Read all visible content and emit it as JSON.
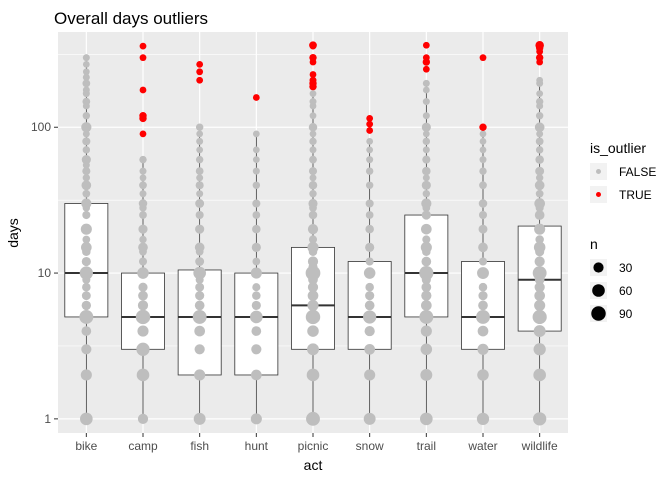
{
  "chart_data": {
    "type": "boxplot",
    "title": "Overall days outliers",
    "xlabel": "act",
    "ylabel": "days",
    "y_scale": "log10",
    "ylim": [
      0.8,
      450
    ],
    "y_ticks": [
      1,
      10,
      100
    ],
    "y_tick_labels": [
      "1",
      "10",
      "100"
    ],
    "grid": true,
    "categories": [
      "bike",
      "camp",
      "fish",
      "hunt",
      "picnic",
      "snow",
      "trail",
      "water",
      "wildlife"
    ],
    "boxes": [
      {
        "q1": 5,
        "median": 10,
        "q3": 30,
        "whisker_low": 1,
        "whisker_high": 300
      },
      {
        "q1": 3,
        "median": 5,
        "q3": 10,
        "whisker_low": 1,
        "whisker_high": 60
      },
      {
        "q1": 2,
        "median": 5,
        "q3": 10.5,
        "whisker_low": 1,
        "whisker_high": 100
      },
      {
        "q1": 2,
        "median": 5,
        "q3": 10,
        "whisker_low": 1,
        "whisker_high": 90
      },
      {
        "q1": 3,
        "median": 6,
        "q3": 15,
        "whisker_low": 1,
        "whisker_high": 170
      },
      {
        "q1": 3,
        "median": 5,
        "q3": 12,
        "whisker_low": 1,
        "whisker_high": 80
      },
      {
        "q1": 5,
        "median": 10,
        "q3": 25,
        "whisker_low": 1,
        "whisker_high": 200
      },
      {
        "q1": 3,
        "median": 5,
        "q3": 12,
        "whisker_low": 1,
        "whisker_high": 90
      },
      {
        "q1": 4,
        "median": 9,
        "q3": 21,
        "whisker_low": 1,
        "whisker_high": 210
      }
    ],
    "points": [
      {
        "category": "bike",
        "values": [
          1,
          2,
          3,
          4,
          5,
          6,
          7,
          8,
          9,
          10,
          12,
          14,
          15,
          17,
          20,
          25,
          28,
          30,
          35,
          40,
          45,
          50,
          55,
          60,
          70,
          80,
          90,
          100,
          120,
          140,
          150,
          170,
          180,
          200,
          220,
          240,
          270,
          300
        ],
        "n": [
          60,
          40,
          30,
          25,
          80,
          22,
          18,
          15,
          12,
          70,
          20,
          15,
          35,
          10,
          40,
          12,
          8,
          30,
          10,
          25,
          8,
          12,
          6,
          20,
          8,
          12,
          6,
          30,
          8,
          6,
          10,
          6,
          6,
          10,
          6,
          5,
          5,
          6
        ]
      },
      {
        "category": "camp",
        "values": [
          1,
          2,
          3,
          4,
          5,
          6,
          7,
          8,
          10,
          12,
          14,
          15,
          17,
          20,
          25,
          28,
          30,
          35,
          40,
          45,
          50,
          60
        ],
        "n": [
          30,
          60,
          70,
          40,
          90,
          30,
          25,
          20,
          45,
          12,
          10,
          25,
          8,
          20,
          10,
          8,
          15,
          6,
          10,
          5,
          6,
          8
        ]
      },
      {
        "category": "fish",
        "values": [
          1,
          2,
          3,
          4,
          5,
          6,
          7,
          8,
          9,
          10,
          12,
          14,
          15,
          20,
          25,
          30,
          35,
          40,
          45,
          50,
          60,
          70,
          80,
          90,
          100
        ],
        "n": [
          50,
          40,
          30,
          35,
          80,
          25,
          20,
          18,
          12,
          60,
          18,
          10,
          25,
          20,
          12,
          18,
          6,
          12,
          6,
          10,
          8,
          5,
          6,
          5,
          8
        ]
      },
      {
        "category": "hunt",
        "values": [
          1,
          2,
          3,
          4,
          5,
          6,
          7,
          8,
          10,
          12,
          15,
          20,
          25,
          30,
          40,
          50,
          60,
          70,
          90
        ],
        "n": [
          40,
          35,
          30,
          25,
          60,
          20,
          15,
          12,
          40,
          10,
          20,
          15,
          10,
          12,
          8,
          6,
          5,
          5,
          5
        ]
      },
      {
        "category": "picnic",
        "values": [
          1,
          2,
          3,
          4,
          5,
          6,
          7,
          8,
          9,
          10,
          11,
          12,
          14,
          15,
          17,
          20,
          25,
          28,
          30,
          35,
          40,
          45,
          50,
          60,
          70,
          80,
          90,
          100,
          120,
          140,
          150,
          170
        ],
        "n": [
          80,
          60,
          50,
          45,
          90,
          40,
          35,
          30,
          25,
          95,
          20,
          30,
          15,
          40,
          12,
          30,
          15,
          10,
          20,
          8,
          15,
          6,
          12,
          10,
          6,
          8,
          5,
          15,
          5,
          5,
          6,
          5
        ]
      },
      {
        "category": "snow",
        "values": [
          1,
          2,
          3,
          4,
          5,
          6,
          7,
          8,
          10,
          12,
          15,
          20,
          25,
          30,
          40,
          50,
          60,
          70,
          80
        ],
        "n": [
          50,
          40,
          35,
          30,
          70,
          25,
          20,
          15,
          45,
          12,
          20,
          15,
          10,
          12,
          8,
          8,
          6,
          5,
          5
        ]
      },
      {
        "category": "trail",
        "values": [
          1,
          2,
          3,
          4,
          5,
          6,
          7,
          8,
          9,
          10,
          12,
          14,
          15,
          17,
          20,
          25,
          28,
          30,
          35,
          40,
          45,
          50,
          60,
          70,
          80,
          90,
          100,
          120,
          150,
          180,
          200
        ],
        "n": [
          60,
          50,
          45,
          40,
          80,
          35,
          30,
          25,
          20,
          85,
          25,
          15,
          40,
          12,
          35,
          20,
          10,
          30,
          8,
          20,
          6,
          15,
          12,
          6,
          8,
          5,
          20,
          6,
          6,
          5,
          6
        ]
      },
      {
        "category": "water",
        "values": [
          1,
          2,
          3,
          4,
          5,
          6,
          7,
          8,
          10,
          12,
          15,
          20,
          25,
          30,
          40,
          50,
          60,
          70,
          80,
          90
        ],
        "n": [
          55,
          45,
          40,
          35,
          80,
          25,
          20,
          15,
          50,
          12,
          25,
          18,
          12,
          15,
          10,
          8,
          6,
          5,
          5,
          5
        ]
      },
      {
        "category": "wildlife",
        "values": [
          1,
          2,
          3,
          4,
          5,
          6,
          7,
          8,
          9,
          10,
          12,
          14,
          15,
          17,
          20,
          25,
          28,
          30,
          35,
          40,
          45,
          50,
          60,
          70,
          80,
          90,
          100,
          120,
          140,
          150,
          170,
          200,
          210
        ],
        "n": [
          70,
          60,
          55,
          50,
          85,
          40,
          35,
          30,
          25,
          80,
          30,
          20,
          45,
          15,
          40,
          25,
          12,
          35,
          10,
          25,
          8,
          18,
          15,
          8,
          10,
          6,
          25,
          8,
          6,
          8,
          5,
          6,
          5
        ]
      }
    ],
    "outliers": [
      {
        "category": "camp",
        "values": [
          90,
          115,
          120,
          180,
          300,
          360
        ],
        "n": [
          5,
          8,
          8,
          5,
          5,
          5
        ]
      },
      {
        "category": "fish",
        "values": [
          210,
          240,
          270
        ],
        "n": [
          5,
          5,
          5
        ]
      },
      {
        "category": "hunt",
        "values": [
          160
        ],
        "n": [
          5
        ]
      },
      {
        "category": "picnic",
        "values": [
          190,
          200,
          210,
          230,
          280,
          300,
          360,
          365
        ],
        "n": [
          8,
          8,
          6,
          5,
          5,
          8,
          5,
          10
        ]
      },
      {
        "category": "snow",
        "values": [
          95,
          105,
          115
        ],
        "n": [
          5,
          5,
          5
        ]
      },
      {
        "category": "trail",
        "values": [
          250,
          280,
          300,
          365
        ],
        "n": [
          5,
          8,
          5,
          5
        ]
      },
      {
        "category": "water",
        "values": [
          100,
          300
        ],
        "n": [
          8,
          5
        ]
      },
      {
        "category": "wildlife",
        "values": [
          280,
          300,
          330,
          350,
          365
        ],
        "n": [
          5,
          8,
          5,
          8,
          15
        ]
      }
    ],
    "colors": {
      "panel": "#EBEBEB",
      "grid_major": "#FFFFFF",
      "point_false": "#BEBEBE",
      "point_true": "#FF0000",
      "box_fill": "#FFFFFF",
      "box_line": "#333333"
    },
    "legend_color": {
      "title": "is_outlier",
      "entries": [
        {
          "label": "FALSE",
          "color": "#BEBEBE"
        },
        {
          "label": "TRUE",
          "color": "#FF0000"
        }
      ]
    },
    "legend_size": {
      "title": "n",
      "entries": [
        {
          "label": "30",
          "value": 30
        },
        {
          "label": "60",
          "value": 60
        },
        {
          "label": "90",
          "value": 90
        }
      ]
    },
    "legend_position": "right"
  }
}
